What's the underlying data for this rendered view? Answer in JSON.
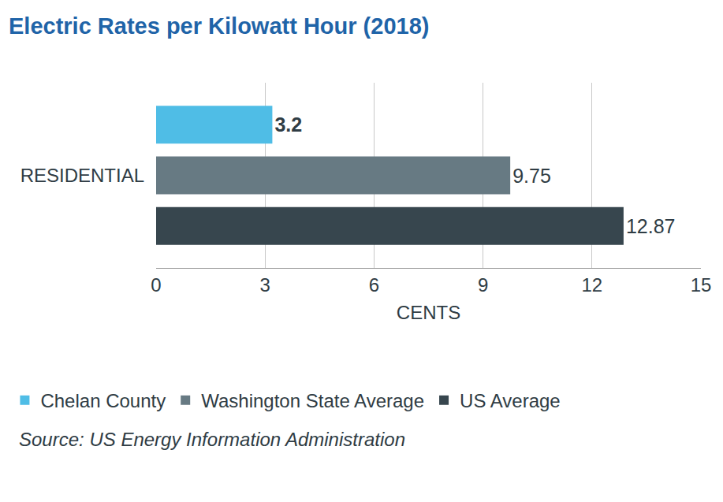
{
  "chart_data": {
    "type": "bar",
    "orientation": "horizontal",
    "title": "Electric Rates per Kilowatt Hour (2018)",
    "categories": [
      "RESIDENTIAL"
    ],
    "series": [
      {
        "name": "Chelan County",
        "color": "#4fbde6",
        "values": [
          3.2
        ]
      },
      {
        "name": "Washington State Average",
        "color": "#677a83",
        "values": [
          9.75
        ]
      },
      {
        "name": "US Average",
        "color": "#37464e",
        "values": [
          12.87
        ]
      }
    ],
    "xlabel": "CENTS",
    "xlim": [
      0,
      15
    ],
    "xticks": [
      0,
      3,
      6,
      9,
      12,
      15
    ],
    "grid": true,
    "legend": "bottom",
    "data_labels": true,
    "annotations": [
      "Source: US Energy Information Administration"
    ]
  }
}
